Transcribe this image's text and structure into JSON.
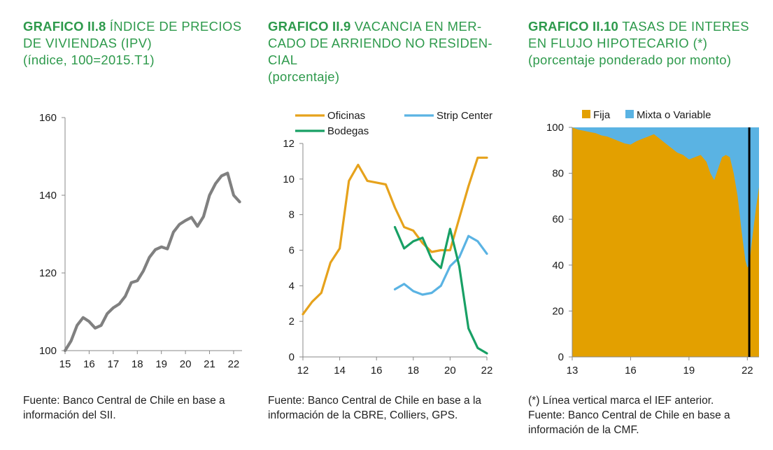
{
  "chart_data": [
    {
      "type": "line",
      "number": "GRAFICO II.8",
      "title": "ÍNDICE DE PRECIOS DE VIVIENDAS (IPV)",
      "subtitle": "(índice, 100=2015.T1)",
      "xlabel": "",
      "ylabel": "",
      "xlim": [
        15,
        22.35
      ],
      "ylim": [
        100,
        160
      ],
      "xticks": [
        "15",
        "16",
        "17",
        "18",
        "19",
        "20",
        "21",
        "22"
      ],
      "yticks": [
        "100",
        "120",
        "140",
        "160"
      ],
      "grid": false,
      "color": "#808080",
      "series": [
        {
          "name": "IPV",
          "x": [
            15,
            15.25,
            15.5,
            15.75,
            16,
            16.25,
            16.5,
            16.75,
            17,
            17.25,
            17.5,
            17.75,
            18,
            18.25,
            18.5,
            18.75,
            19,
            19.25,
            19.5,
            19.75,
            20,
            20.25,
            20.5,
            20.75,
            21,
            21.25,
            21.5,
            21.75,
            22,
            22.25
          ],
          "y": [
            100,
            102.5,
            106.5,
            108.5,
            107.5,
            105.8,
            106.5,
            109.5,
            111,
            112,
            114,
            117.5,
            118,
            120.5,
            124,
            126,
            126.7,
            126.2,
            130.5,
            132.5,
            133.5,
            134.3,
            132,
            134.5,
            140,
            143,
            145,
            145.7,
            140,
            138.3
          ]
        }
      ],
      "source": "Fuente: Banco Central de Chile en base a información del SII."
    },
    {
      "type": "line",
      "number": "GRAFICO II.9",
      "title": "VACANCIA EN MERCADO DE ARRIENDO NO RESIDENCIAL",
      "title_lines": [
        "VACANCIA EN MER-",
        "CADO DE ARRIENDO NO RESIDEN-",
        "CIAL"
      ],
      "subtitle": "(porcentaje)",
      "xlabel": "",
      "ylabel": "",
      "xlim": [
        12,
        22
      ],
      "ylim": [
        0,
        12
      ],
      "xticks": [
        "12",
        "14",
        "16",
        "18",
        "20",
        "22"
      ],
      "yticks": [
        "0",
        "2",
        "4",
        "6",
        "8",
        "10",
        "12"
      ],
      "grid": false,
      "legend": "top",
      "series": [
        {
          "name": "Oficinas",
          "color": "#e6a21c",
          "x": [
            12,
            12.5,
            13,
            13.5,
            14,
            14.5,
            15,
            15.5,
            16,
            16.5,
            17,
            17.5,
            18,
            18.5,
            19,
            19.5,
            20,
            20.5,
            21,
            21.5,
            22
          ],
          "y": [
            2.4,
            3.1,
            3.6,
            5.3,
            6.1,
            9.9,
            10.8,
            9.9,
            9.8,
            9.7,
            8.4,
            7.3,
            7.1,
            6.4,
            5.9,
            6.0,
            6.0,
            7.8,
            9.6,
            11.2,
            11.2
          ]
        },
        {
          "name": "Strip Center",
          "color": "#5ab3e3",
          "x": [
            17,
            17.5,
            18,
            18.5,
            19,
            19.5,
            20,
            20.5,
            21,
            21.5,
            22
          ],
          "y": [
            3.8,
            4.1,
            3.7,
            3.5,
            3.6,
            4.0,
            5.1,
            5.6,
            6.8,
            6.5,
            5.8
          ]
        },
        {
          "name": "Bodegas",
          "color": "#18a065",
          "x": [
            17,
            17.5,
            18,
            18.5,
            19,
            19.5,
            20,
            20.5,
            21,
            21.5,
            22
          ],
          "y": [
            7.3,
            6.1,
            6.5,
            6.7,
            5.5,
            5.0,
            7.2,
            5.1,
            1.6,
            0.5,
            0.2
          ]
        }
      ],
      "source": "Fuente: Banco Central de Chile en base a la información de la CBRE, Colliers, GPS."
    },
    {
      "type": "area",
      "stacked": true,
      "number": "GRAFICO II.10",
      "title": "TASAS DE INTERES EN FLUJO HIPOTECARIO (*)",
      "subtitle": "(porcentaje ponderado por monto)",
      "xlabel": "",
      "ylabel": "",
      "xlim": [
        13,
        22.6
      ],
      "ylim": [
        0,
        100
      ],
      "xticks": [
        "13",
        "16",
        "19",
        "22"
      ],
      "yticks": [
        "0",
        "20",
        "40",
        "60",
        "80",
        "100"
      ],
      "grid": false,
      "legend": "top",
      "vline": {
        "x": 22.1,
        "label": "IEF anterior",
        "color": "#000000"
      },
      "series": [
        {
          "name": "Fija",
          "color": "#e3a000",
          "x": [
            13,
            13.3,
            13.6,
            13.9,
            14.2,
            14.5,
            14.8,
            15.1,
            15.4,
            15.7,
            16,
            16.3,
            16.6,
            16.9,
            17.2,
            17.5,
            17.8,
            18.1,
            18.4,
            18.7,
            19.0,
            19.3,
            19.6,
            19.9,
            20.1,
            20.3,
            20.5,
            20.7,
            20.9,
            21.1,
            21.3,
            21.5,
            21.7,
            21.9,
            22.0,
            22.1,
            22.2,
            22.3,
            22.45,
            22.6
          ],
          "y": [
            100,
            99,
            98.5,
            98,
            97.5,
            96.5,
            96,
            95,
            94,
            93,
            92.5,
            94,
            95,
            96,
            97,
            95,
            93,
            91,
            89,
            88,
            86,
            87,
            88,
            85,
            80,
            77,
            82,
            87,
            88,
            87,
            80,
            70,
            55,
            42,
            39,
            40,
            48,
            55,
            65,
            74
          ]
        },
        {
          "name": "Mixta o Variable",
          "color": "#5ab3e3",
          "x": [
            13,
            22.6
          ],
          "y": "complement-to-100"
        }
      ],
      "source": "(*) Línea vertical marca el IEF anterior. Fuente: Banco Central de Chile en base a información de la CMF.",
      "note": "(*) Línea vertical marca el IEF anterior.",
      "source_line": "Fuente: Banco Central de Chile en base a información de la CMF."
    }
  ]
}
